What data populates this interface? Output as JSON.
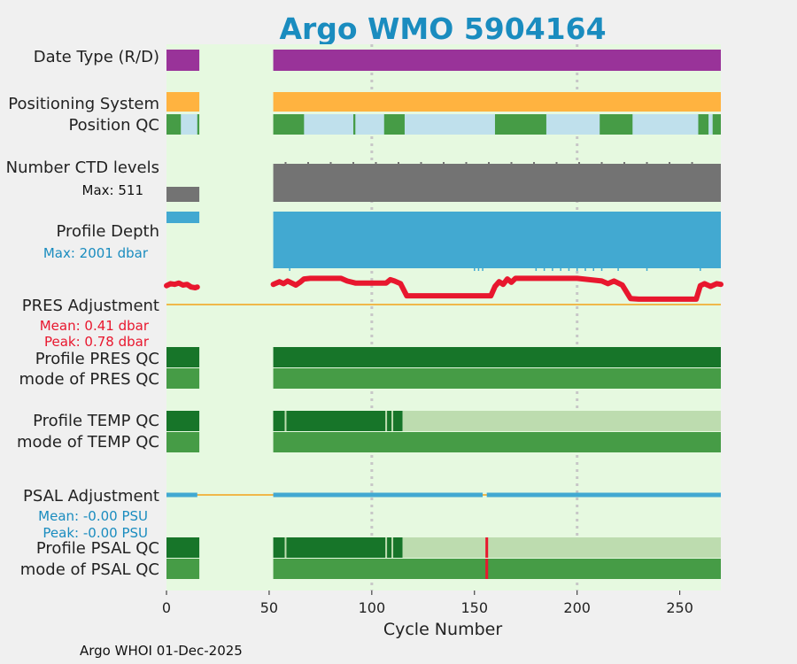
{
  "title": "Argo WMO 5904164",
  "footer": "Argo WHOI 01-Dec-2025",
  "colors": {
    "background": "#f0f0f0",
    "plot_bg": "#e6f9e0",
    "title": "#1a8cbf",
    "date_type": "#993399",
    "positioning": "#ffb340",
    "qc_good": "#469c46",
    "qc_light_blue": "#bfe0ec",
    "ctd": "#737373",
    "depth": "#42a9d1",
    "pres_adj": "#e8172e",
    "zero_line": "#f0b84a",
    "profile_qc_dark": "#177529",
    "mode_qc": "#469c46",
    "qc_pale": "#bddcaf",
    "psal_line": "#42a9d1",
    "grid": "#c7c7c7",
    "qc_bad": "#e8172e",
    "accent_label_red": "#e8172e",
    "accent_label_blue": "#1a8cbf"
  },
  "row_labels": {
    "date_type": "Date Type (R/D)",
    "positioning": "Positioning System",
    "position_qc": "Position QC",
    "ctd_levels": "Number CTD levels",
    "ctd_max": "Max: 511",
    "profile_depth": "Profile Depth",
    "depth_max": "Max: 2001 dbar",
    "pres_adj": "PRES Adjustment",
    "pres_mean": "Mean: 0.41 dbar",
    "pres_peak": "Peak: 0.78 dbar",
    "profile_pres_qc": "Profile PRES QC",
    "mode_pres_qc": "mode of PRES QC",
    "profile_temp_qc": "Profile TEMP QC",
    "mode_temp_qc": "mode of TEMP QC",
    "psal_adj": "PSAL Adjustment",
    "psal_mean": "Mean: -0.00 PSU",
    "psal_peak": "Peak: -0.00 PSU",
    "profile_psal_qc": "Profile PSAL QC",
    "mode_psal_qc": "mode of PSAL QC"
  },
  "chart_data": {
    "type": "timeline",
    "title": "Argo WMO 5904164",
    "xlabel": "Cycle Number",
    "xlim": [
      0,
      270
    ],
    "xticks": [
      0,
      50,
      100,
      150,
      200,
      250
    ],
    "grid_x": [
      100,
      200
    ],
    "data_segments": [
      [
        0,
        16
      ],
      [
        52,
        270
      ]
    ],
    "gap": [
      16,
      52
    ],
    "ctd_levels_max": 511,
    "profile_depth_max_dbar": 2001,
    "pres_adjustment": {
      "mean_dbar": 0.41,
      "peak_dbar": 0.78,
      "points": [
        [
          0,
          0.56
        ],
        [
          2,
          0.62
        ],
        [
          4,
          0.6
        ],
        [
          6,
          0.64
        ],
        [
          8,
          0.58
        ],
        [
          10,
          0.6
        ],
        [
          12,
          0.52
        ],
        [
          14,
          0.5
        ],
        [
          15,
          0.52
        ],
        [
          52,
          0.6
        ],
        [
          55,
          0.68
        ],
        [
          57,
          0.62
        ],
        [
          59,
          0.7
        ],
        [
          61,
          0.64
        ],
        [
          63,
          0.58
        ],
        [
          65,
          0.66
        ],
        [
          67,
          0.76
        ],
        [
          70,
          0.78
        ],
        [
          85,
          0.78
        ],
        [
          88,
          0.7
        ],
        [
          92,
          0.64
        ],
        [
          98,
          0.64
        ],
        [
          107,
          0.64
        ],
        [
          109,
          0.74
        ],
        [
          111,
          0.7
        ],
        [
          114,
          0.62
        ],
        [
          117,
          0.26
        ],
        [
          120,
          0.26
        ],
        [
          158,
          0.26
        ],
        [
          160,
          0.54
        ],
        [
          162,
          0.68
        ],
        [
          164,
          0.6
        ],
        [
          166,
          0.76
        ],
        [
          168,
          0.66
        ],
        [
          170,
          0.78
        ],
        [
          200,
          0.78
        ],
        [
          212,
          0.7
        ],
        [
          215,
          0.62
        ],
        [
          218,
          0.7
        ],
        [
          222,
          0.58
        ],
        [
          226,
          0.18
        ],
        [
          230,
          0.16
        ],
        [
          258,
          0.16
        ],
        [
          260,
          0.56
        ],
        [
          262,
          0.62
        ],
        [
          265,
          0.54
        ],
        [
          268,
          0.62
        ],
        [
          270,
          0.6
        ]
      ]
    },
    "psal_adjustment": {
      "mean_psu": -0.0,
      "peak_psu": -0.0,
      "segments": [
        [
          0,
          15
        ],
        [
          52,
          154
        ],
        [
          156,
          270
        ]
      ]
    },
    "position_qc_light_segments": [
      [
        7,
        15
      ],
      [
        67,
        91
      ],
      [
        92,
        106
      ],
      [
        116,
        160
      ],
      [
        185,
        211
      ],
      [
        227,
        259
      ],
      [
        264,
        266
      ]
    ],
    "profile_temp_qc": {
      "dark_segments": [
        [
          52,
          115
        ]
      ],
      "pale_segments": [
        [
          115,
          270
        ]
      ],
      "light_ticks": [
        58,
        107,
        110
      ]
    },
    "profile_psal_qc": {
      "dark_segments": [
        [
          52,
          115
        ]
      ],
      "pale_segments": [
        [
          115,
          270
        ]
      ],
      "light_ticks": [
        58,
        107,
        110
      ],
      "bad_ticks": [
        156
      ]
    },
    "mode_psal_bad_ticks": [
      156
    ]
  }
}
